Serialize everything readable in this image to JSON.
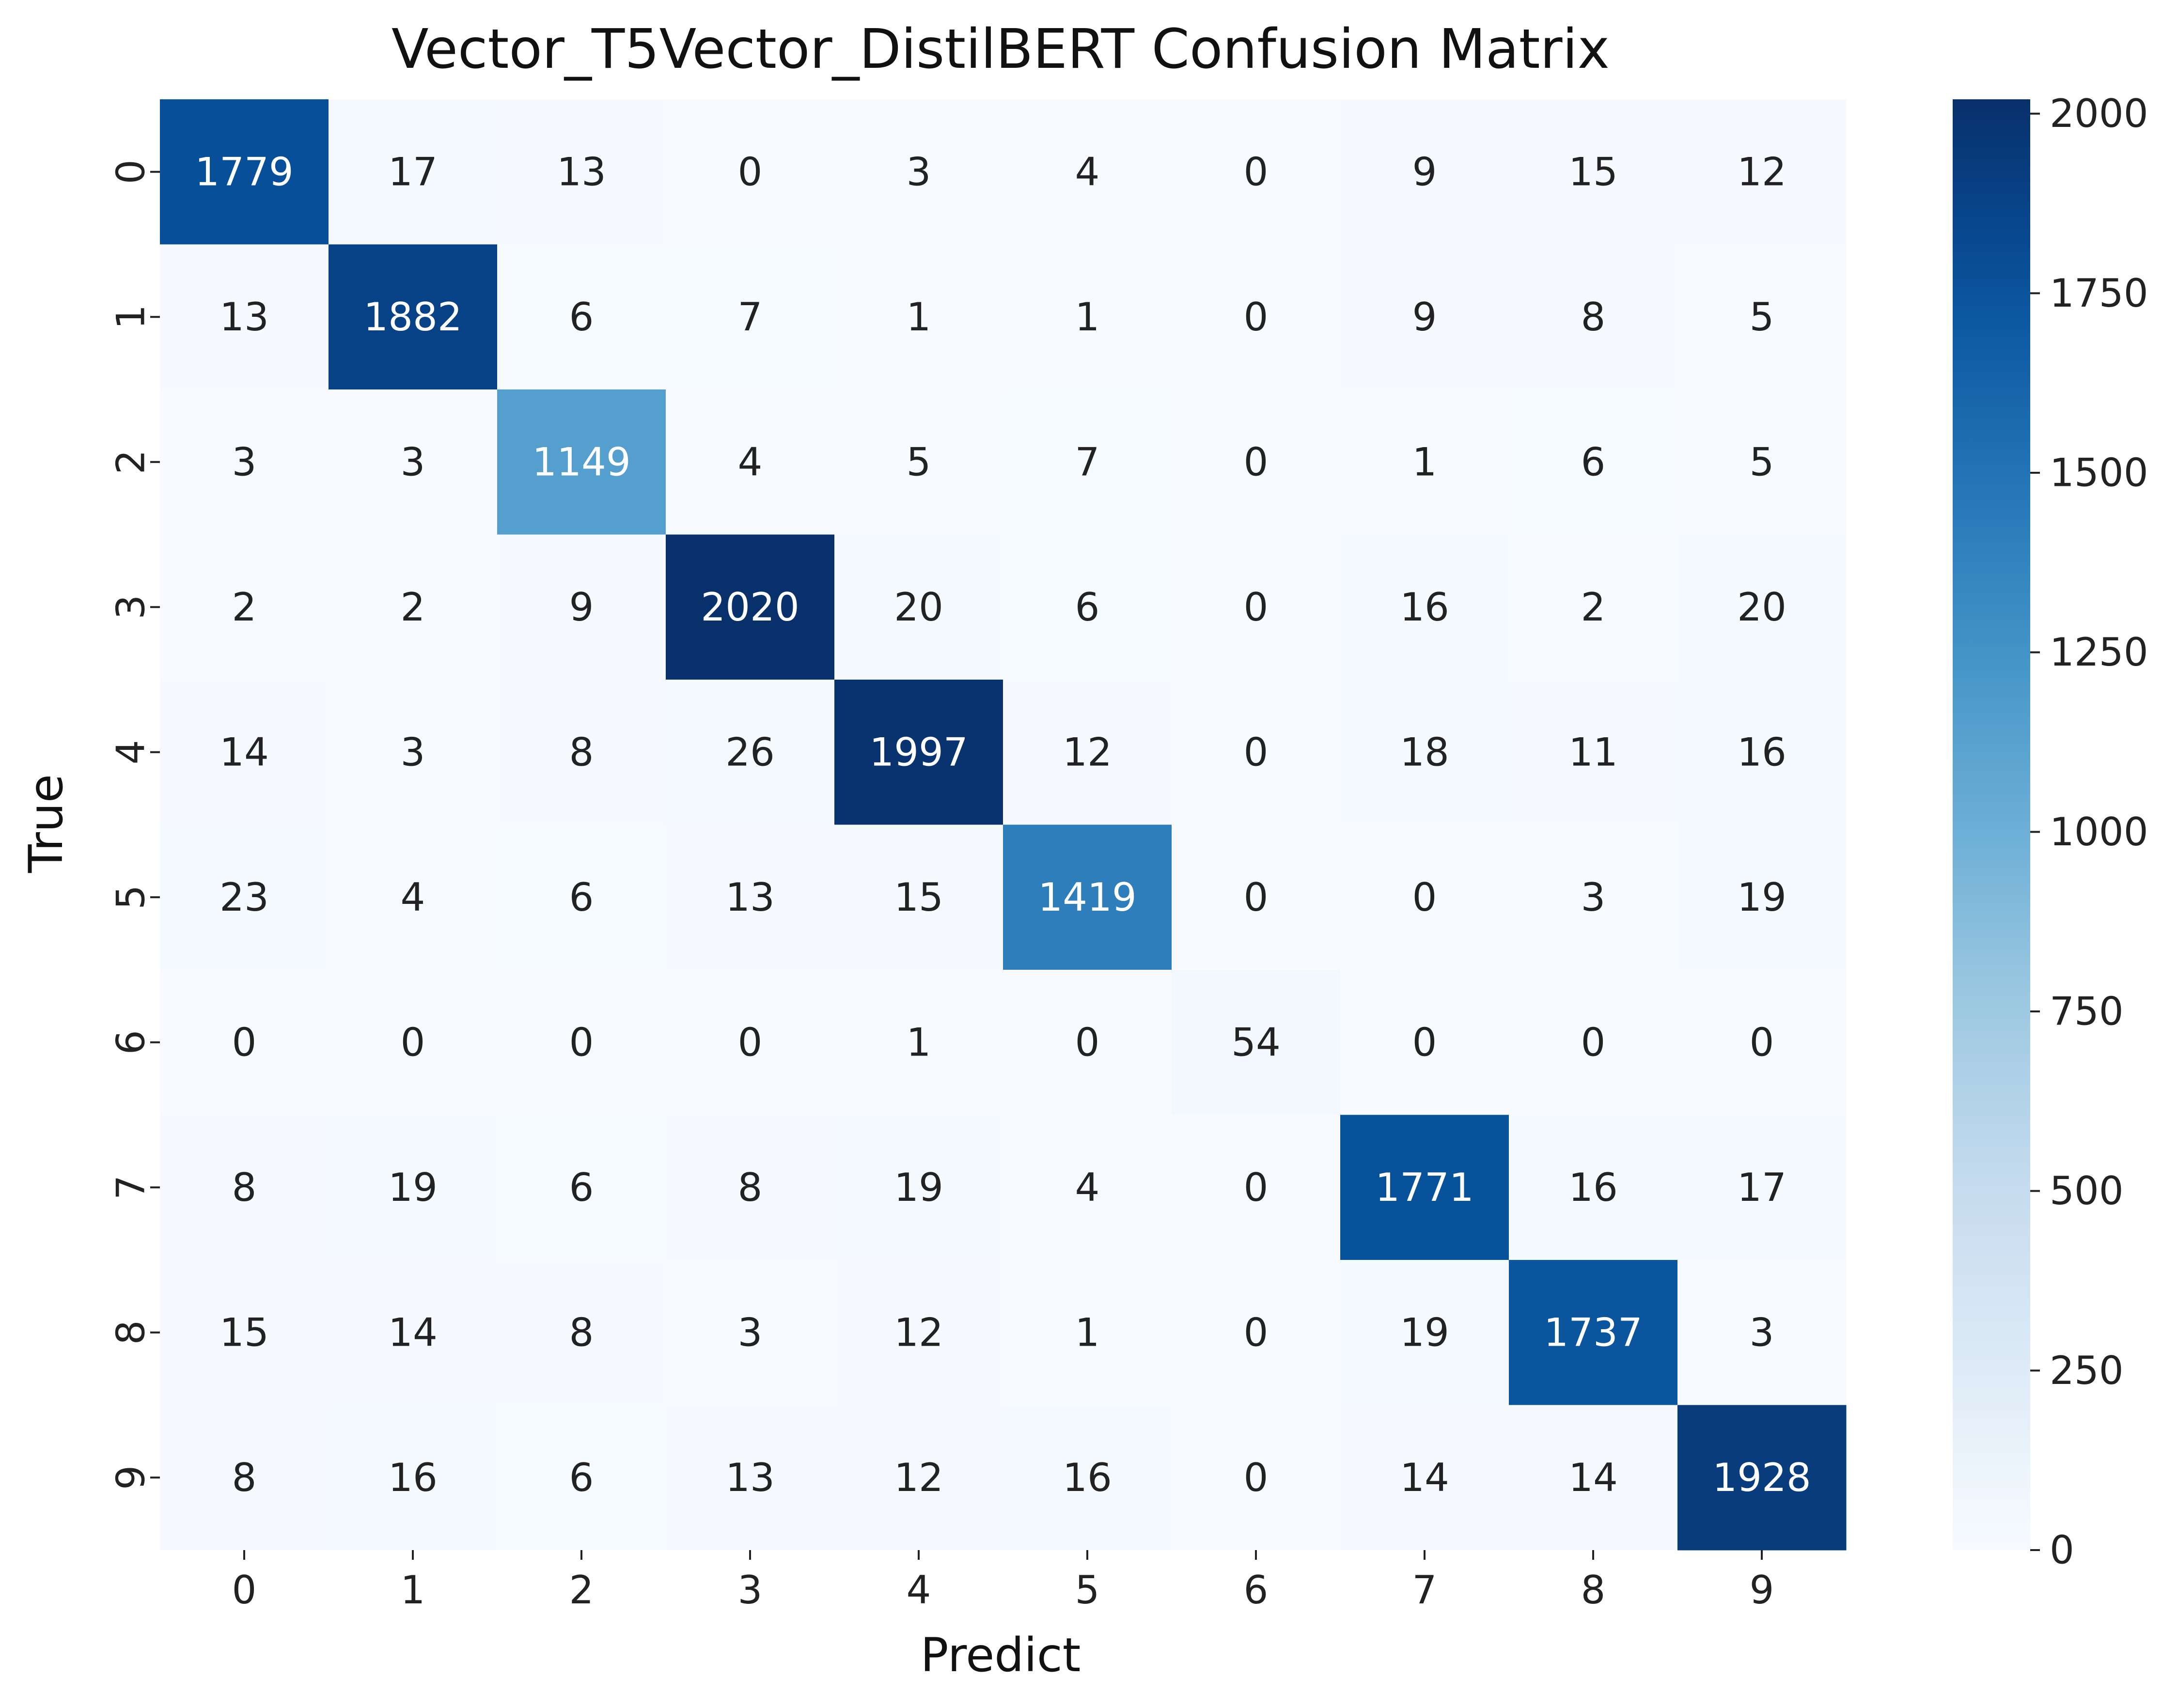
{
  "chart_data": {
    "type": "heatmap",
    "title": "Vector_T5Vector_DistilBERT Confusion Matrix",
    "xlabel": "Predict",
    "ylabel": "True",
    "x_categories": [
      "0",
      "1",
      "2",
      "3",
      "4",
      "5",
      "6",
      "7",
      "8",
      "9"
    ],
    "y_categories": [
      "0",
      "1",
      "2",
      "3",
      "4",
      "5",
      "6",
      "7",
      "8",
      "9"
    ],
    "matrix": [
      [
        1779,
        17,
        13,
        0,
        3,
        4,
        0,
        9,
        15,
        12
      ],
      [
        13,
        1882,
        6,
        7,
        1,
        1,
        0,
        9,
        8,
        5
      ],
      [
        3,
        3,
        1149,
        4,
        5,
        7,
        0,
        1,
        6,
        5
      ],
      [
        2,
        2,
        9,
        2020,
        20,
        6,
        0,
        16,
        2,
        20
      ],
      [
        14,
        3,
        8,
        26,
        1997,
        12,
        0,
        18,
        11,
        16
      ],
      [
        23,
        4,
        6,
        13,
        15,
        1419,
        0,
        0,
        3,
        19
      ],
      [
        0,
        0,
        0,
        0,
        1,
        0,
        54,
        0,
        0,
        0
      ],
      [
        8,
        19,
        6,
        8,
        19,
        4,
        0,
        1771,
        16,
        17
      ],
      [
        15,
        14,
        8,
        3,
        12,
        1,
        0,
        19,
        1737,
        3
      ],
      [
        8,
        16,
        6,
        13,
        12,
        16,
        0,
        14,
        14,
        1928
      ]
    ],
    "colorbar": {
      "min": 0,
      "max": 2020,
      "ticks": [
        0,
        250,
        500,
        750,
        1000,
        1250,
        1500,
        1750,
        2000
      ],
      "colormap": "Blues"
    }
  }
}
